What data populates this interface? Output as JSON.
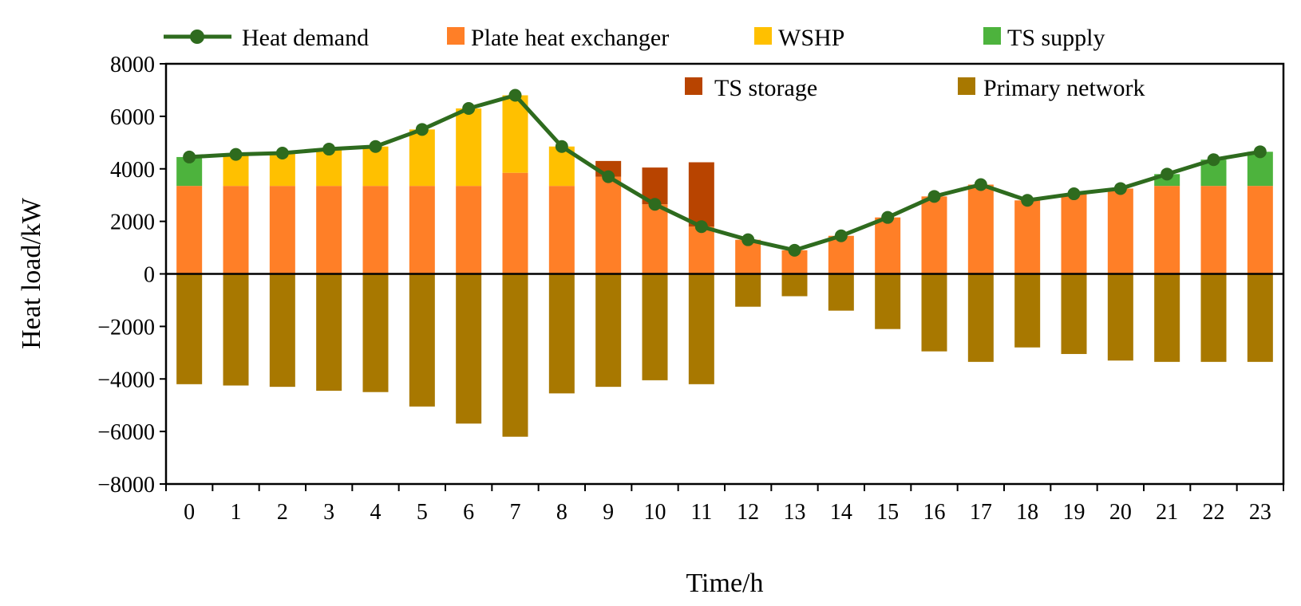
{
  "chart_data": {
    "type": "bar",
    "stacked": true,
    "xlabel": "Time/h",
    "ylabel": "Heat load/kW",
    "ylim": [
      -8000,
      8000
    ],
    "yticks": [
      8000,
      6000,
      4000,
      2000,
      0,
      -2000,
      -4000,
      -6000,
      -8000
    ],
    "ytick_labels": [
      "8000",
      "6000",
      "4000",
      "2000",
      "0",
      "−2000",
      "−4000",
      "−6000",
      "−8000"
    ],
    "categories": [
      "0",
      "1",
      "2",
      "3",
      "4",
      "5",
      "6",
      "7",
      "8",
      "9",
      "10",
      "11",
      "12",
      "13",
      "14",
      "15",
      "16",
      "17",
      "18",
      "19",
      "20",
      "21",
      "22",
      "23"
    ],
    "grid": false,
    "legend_position": "top",
    "series": [
      {
        "name": "Plate heat exchanger",
        "color": "#FF7F27",
        "values": [
          3350,
          3350,
          3350,
          3350,
          3350,
          3350,
          3350,
          3850,
          3350,
          3700,
          2650,
          1800,
          1300,
          900,
          1450,
          2150,
          2950,
          3400,
          2800,
          3050,
          3250,
          3350,
          3350,
          3350
        ]
      },
      {
        "name": "WSHP",
        "color": "#FFC000",
        "values": [
          0,
          1200,
          1250,
          1400,
          1500,
          2150,
          2950,
          2950,
          1500,
          0,
          0,
          0,
          0,
          0,
          0,
          0,
          0,
          0,
          0,
          0,
          0,
          0,
          0,
          0
        ]
      },
      {
        "name": "TS supply",
        "color": "#4DB33D",
        "values": [
          1100,
          0,
          0,
          0,
          0,
          0,
          0,
          0,
          0,
          0,
          0,
          0,
          0,
          0,
          0,
          0,
          0,
          0,
          0,
          0,
          0,
          450,
          1000,
          1300
        ]
      },
      {
        "name": "TS storage",
        "color": "#B84400",
        "values": [
          0,
          0,
          0,
          0,
          0,
          0,
          0,
          0,
          0,
          600,
          1400,
          2450,
          0,
          0,
          0,
          0,
          0,
          0,
          0,
          0,
          0,
          0,
          0,
          0
        ]
      },
      {
        "name": "Primary network",
        "color": "#A87800",
        "values": [
          -4200,
          -4250,
          -4300,
          -4450,
          -4500,
          -5050,
          -5700,
          -6200,
          -4550,
          -4300,
          -4050,
          -4200,
          -1250,
          -850,
          -1400,
          -2100,
          -2950,
          -3350,
          -2800,
          -3050,
          -3300,
          -3350,
          -3350,
          -3350
        ]
      }
    ],
    "line": {
      "name": "Heat demand",
      "color": "#2E6B1E",
      "values": [
        4450,
        4550,
        4600,
        4750,
        4850,
        5500,
        6300,
        6800,
        4850,
        3700,
        2650,
        1800,
        1300,
        900,
        1450,
        2150,
        2950,
        3400,
        2800,
        3050,
        3250,
        3800,
        4350,
        4650
      ]
    }
  }
}
